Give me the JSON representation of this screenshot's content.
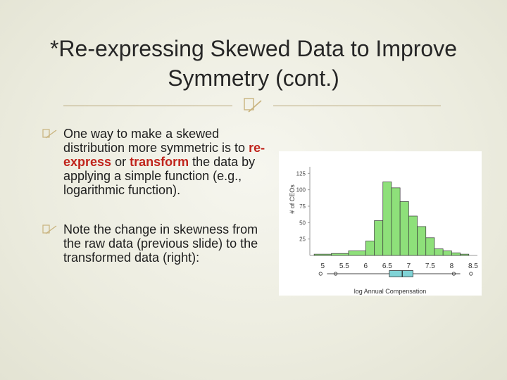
{
  "slide": {
    "title": "*Re-expressing Skewed Data to Improve Symmetry (cont.)"
  },
  "bullets": [
    {
      "before": "One way to make a skewed distribution more symmetric is to ",
      "term1": "re-express",
      "middle": " or ",
      "term2": "transform",
      "after": " the data by applying a simple function (e.g., logarithmic function)."
    },
    {
      "text": "Note the change in skewness from the raw data (previous slide)  to the transformed data (right):"
    }
  ],
  "colors": {
    "accent": "#c0241c",
    "bar_fill": "#8ee07a",
    "box_fill": "#7fd3d6",
    "rule": "#b8a77a"
  },
  "icons": {
    "bullet": "hollow-square-bullet-icon",
    "title_ornament": "hollow-square-ornament-icon"
  },
  "chart_data": {
    "type": "bar",
    "xlabel": "log Annual Compensation",
    "ylabel": "# of CEOs",
    "xlim": [
      4.7,
      8.6
    ],
    "ylim": [
      0,
      135
    ],
    "x_ticks": [
      "5",
      "5.5",
      "6",
      "6.5",
      "7",
      "7.5",
      "8",
      "8.5"
    ],
    "y_ticks": [
      "25",
      "50",
      "75",
      "100",
      "125"
    ],
    "bins": [
      {
        "start": 4.8,
        "end": 5.2,
        "value": 2
      },
      {
        "start": 5.2,
        "end": 5.6,
        "value": 3
      },
      {
        "start": 5.6,
        "end": 6.0,
        "value": 7
      },
      {
        "start": 6.0,
        "end": 6.2,
        "value": 22
      },
      {
        "start": 6.2,
        "end": 6.4,
        "value": 53
      },
      {
        "start": 6.4,
        "end": 6.6,
        "value": 112
      },
      {
        "start": 6.6,
        "end": 6.8,
        "value": 103
      },
      {
        "start": 6.8,
        "end": 7.0,
        "value": 82
      },
      {
        "start": 7.0,
        "end": 7.2,
        "value": 60
      },
      {
        "start": 7.2,
        "end": 7.4,
        "value": 44
      },
      {
        "start": 7.4,
        "end": 7.6,
        "value": 27
      },
      {
        "start": 7.6,
        "end": 7.8,
        "value": 10
      },
      {
        "start": 7.8,
        "end": 8.0,
        "value": 7
      },
      {
        "start": 8.0,
        "end": 8.2,
        "value": 4
      },
      {
        "start": 8.2,
        "end": 8.4,
        "value": 2
      }
    ],
    "boxplot": {
      "min": 5.1,
      "q1": 6.55,
      "median": 6.85,
      "q3": 7.1,
      "max": 8.2,
      "outliers": [
        4.95,
        5.3,
        8.05,
        8.45
      ]
    },
    "grid": false,
    "legend": "none"
  }
}
